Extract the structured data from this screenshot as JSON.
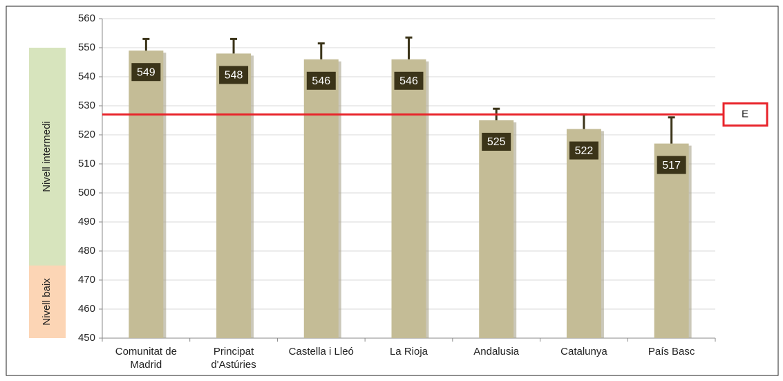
{
  "chart_data": {
    "type": "bar",
    "categories": [
      "Comunitat de\nMadrid",
      "Principat\nd'Astúries",
      "Castella i Lleó",
      "La Rioja",
      "Andalusia",
      "Catalunya",
      "País Basc"
    ],
    "series": [
      {
        "color": "#c4bc96",
        "values": [
          549,
          548,
          546,
          546,
          525,
          522,
          517
        ],
        "errors": [
          4,
          5,
          5.5,
          7.5,
          4,
          5,
          9
        ]
      }
    ],
    "ylim": [
      450,
      560
    ],
    "yticks": [
      450,
      460,
      470,
      480,
      490,
      500,
      510,
      520,
      530,
      540,
      550,
      560
    ],
    "grid": true,
    "bands": [
      {
        "label": "Nivell intermedi",
        "range": [
          475,
          550
        ],
        "color": "#d7e4bd"
      },
      {
        "label": "Nivell baix",
        "range": [
          450,
          475
        ],
        "color": "#fcd5b5"
      }
    ],
    "reference_line": {
      "value": 527,
      "label": "E",
      "color": "#e8242b"
    }
  }
}
